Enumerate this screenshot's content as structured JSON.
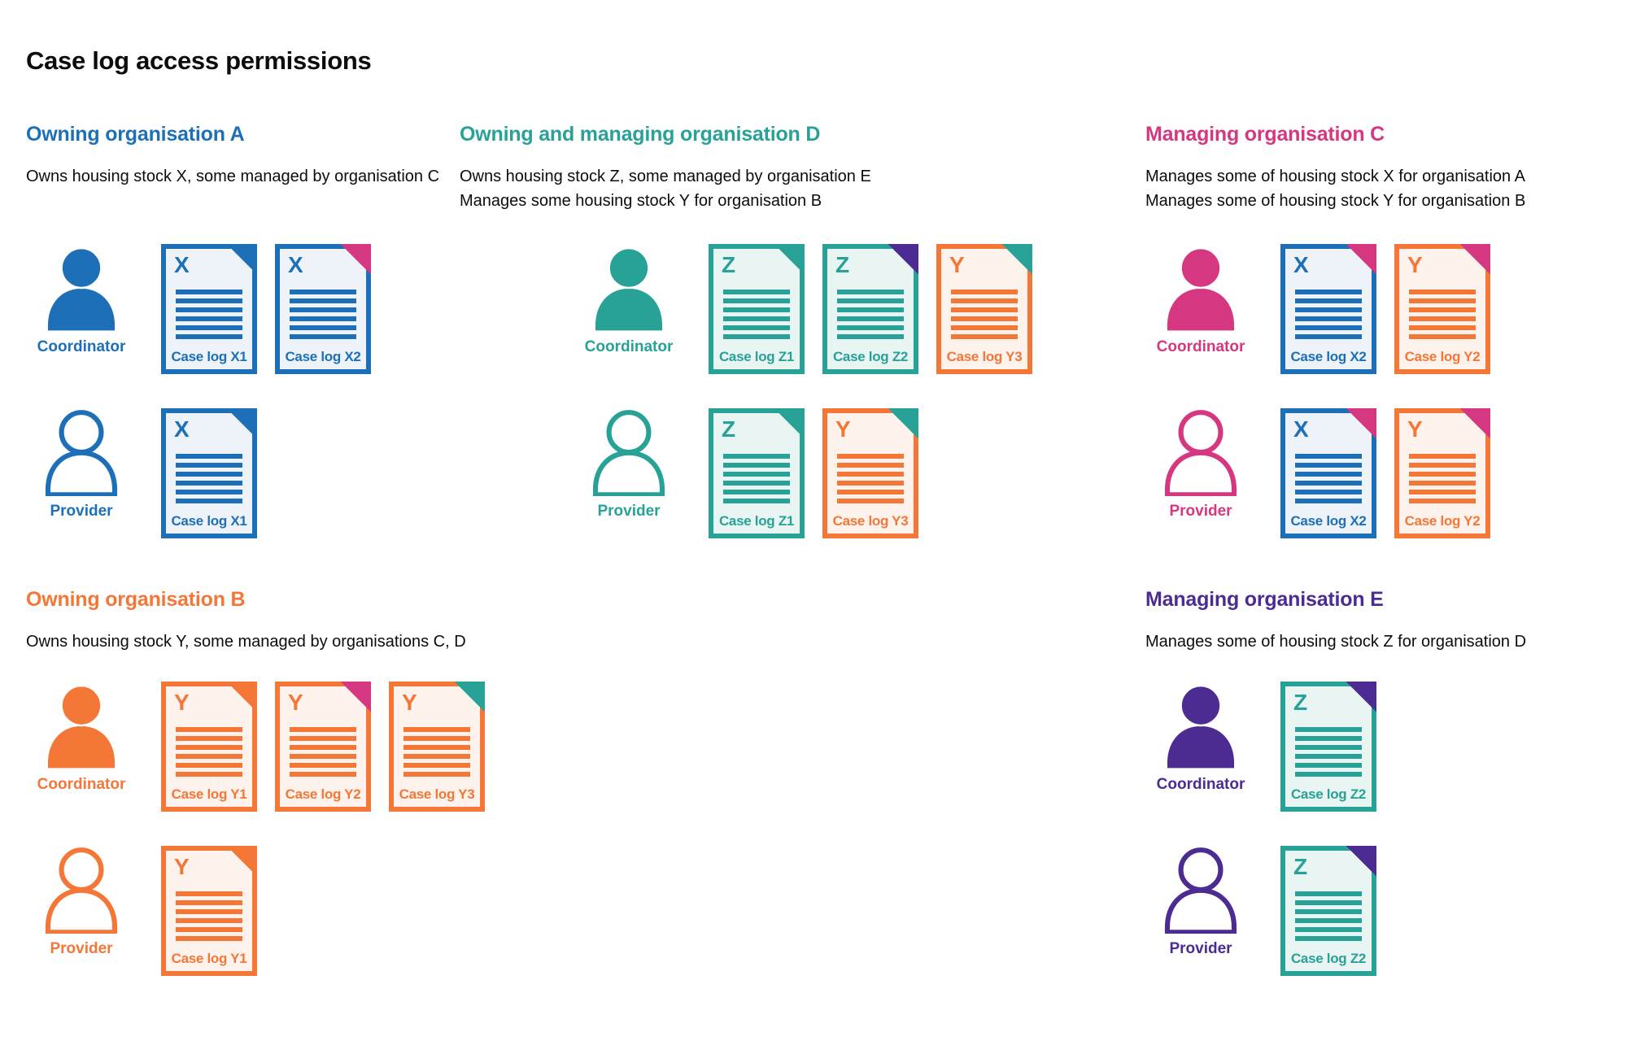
{
  "title": "Case log access permissions",
  "colors": {
    "blue": "#1d70b8",
    "teal": "#28a197",
    "orange": "#f47738",
    "pink": "#d53880",
    "purple": "#4c2c92",
    "text": "#0b0c0c",
    "background": "#ffffff",
    "doc_fills": {
      "blue": "#eef3fa",
      "teal": "#e9f5f2",
      "orange": "#fef3ec"
    }
  },
  "roles": {
    "coordinator": "Coordinator",
    "provider": "Provider"
  },
  "sections": [
    {
      "id": "a",
      "title": "Owning organisation A",
      "color": "blue",
      "description": [
        "Owns housing stock X, some managed by organisation C"
      ],
      "rows": [
        {
          "role": "coordinator",
          "person_style": "filled",
          "docs": [
            {
              "letter": "X",
              "label": "Case log X1",
              "doc_color": "blue",
              "corner_color": "blue"
            },
            {
              "letter": "X",
              "label": "Case log X2",
              "doc_color": "blue",
              "corner_color": "pink"
            }
          ]
        },
        {
          "role": "provider",
          "person_style": "outline",
          "docs": [
            {
              "letter": "X",
              "label": "Case log X1",
              "doc_color": "blue",
              "corner_color": "blue"
            }
          ]
        }
      ]
    },
    {
      "id": "d",
      "title": "Owning and managing organisation D",
      "color": "teal",
      "description": [
        "Owns housing stock Z, some managed by organisation E",
        "Manages some housing stock Y for organisation B"
      ],
      "rows": [
        {
          "role": "coordinator",
          "person_style": "filled",
          "docs": [
            {
              "letter": "Z",
              "label": "Case log Z1",
              "doc_color": "teal",
              "corner_color": "teal"
            },
            {
              "letter": "Z",
              "label": "Case log Z2",
              "doc_color": "teal",
              "corner_color": "purple"
            },
            {
              "letter": "Y",
              "label": "Case log Y3",
              "doc_color": "orange",
              "corner_color": "teal"
            }
          ]
        },
        {
          "role": "provider",
          "person_style": "outline",
          "docs": [
            {
              "letter": "Z",
              "label": "Case log Z1",
              "doc_color": "teal",
              "corner_color": "teal"
            },
            {
              "letter": "Y",
              "label": "Case log Y3",
              "doc_color": "orange",
              "corner_color": "teal"
            }
          ]
        }
      ]
    },
    {
      "id": "c",
      "title": "Managing organisation C",
      "color": "pink",
      "description": [
        "Manages some of housing stock X for organisation A",
        "Manages some of housing stock Y for organisation B"
      ],
      "rows": [
        {
          "role": "coordinator",
          "person_style": "filled",
          "docs": [
            {
              "letter": "X",
              "label": "Case log X2",
              "doc_color": "blue",
              "corner_color": "pink"
            },
            {
              "letter": "Y",
              "label": "Case log Y2",
              "doc_color": "orange",
              "corner_color": "pink"
            }
          ]
        },
        {
          "role": "provider",
          "person_style": "outline",
          "docs": [
            {
              "letter": "X",
              "label": "Case log X2",
              "doc_color": "blue",
              "corner_color": "pink"
            },
            {
              "letter": "Y",
              "label": "Case log Y2",
              "doc_color": "orange",
              "corner_color": "pink"
            }
          ]
        }
      ]
    },
    {
      "id": "b",
      "title": "Owning organisation B",
      "color": "orange",
      "description": [
        "Owns housing stock Y, some managed by organisations C, D"
      ],
      "rows": [
        {
          "role": "coordinator",
          "person_style": "filled",
          "docs": [
            {
              "letter": "Y",
              "label": "Case log Y1",
              "doc_color": "orange",
              "corner_color": "orange"
            },
            {
              "letter": "Y",
              "label": "Case log Y2",
              "doc_color": "orange",
              "corner_color": "pink"
            },
            {
              "letter": "Y",
              "label": "Case log Y3",
              "doc_color": "orange",
              "corner_color": "teal"
            }
          ]
        },
        {
          "role": "provider",
          "person_style": "outline",
          "docs": [
            {
              "letter": "Y",
              "label": "Case log Y1",
              "doc_color": "orange",
              "corner_color": "orange"
            }
          ]
        }
      ]
    },
    {
      "id": "e",
      "title": "Managing organisation E",
      "color": "purple",
      "description": [
        "Manages some of housing stock Z for organisation D"
      ],
      "rows": [
        {
          "role": "coordinator",
          "person_style": "filled",
          "docs": [
            {
              "letter": "Z",
              "label": "Case log Z2",
              "doc_color": "teal",
              "corner_color": "purple"
            }
          ]
        },
        {
          "role": "provider",
          "person_style": "outline",
          "docs": [
            {
              "letter": "Z",
              "label": "Case log Z2",
              "doc_color": "teal",
              "corner_color": "purple"
            }
          ]
        }
      ]
    }
  ]
}
